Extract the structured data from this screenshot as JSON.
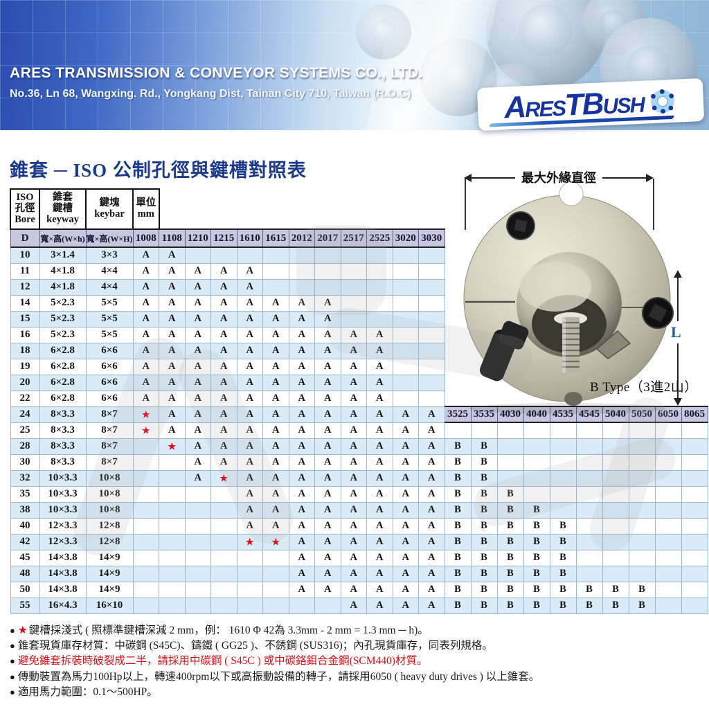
{
  "banner": {
    "company": "ARES TRANSMISSION & CONVEYOR SYSTEMS CO., LTD.",
    "address": "No.36, Ln 68, Wangxing. Rd., Yongkang Dist, Tainan City 710, Taiwan (R.O.C)",
    "logo": "AresTBush"
  },
  "page_title": "錐套 ─ ISO 公制孔徑與鍵槽對照表",
  "photo": {
    "dim_top_label": "最大外緣直徑",
    "dim_length_label": "L",
    "caption": "B Type（3進2山）"
  },
  "table": {
    "corner_headers": [
      {
        "lines": [
          "ISO",
          "孔徑",
          "Bore"
        ]
      },
      {
        "lines": [
          "錐套",
          "鍵槽",
          "keyway"
        ]
      },
      {
        "lines": [
          "鍵塊",
          "keybar"
        ]
      },
      {
        "lines": [
          "單位",
          "mm"
        ]
      }
    ],
    "sub_headers": [
      "D",
      "寬×高(W×h)",
      "寬×高(W×H)"
    ],
    "size_columns": [
      "1008",
      "1108",
      "1210",
      "1215",
      "1610",
      "1615",
      "2012",
      "2017",
      "2517",
      "2525",
      "3020",
      "3030"
    ],
    "ext_columns": [
      "3525",
      "3535",
      "4030",
      "4040",
      "4535",
      "4545",
      "5040",
      "5050",
      "6050",
      "8065"
    ],
    "star_symbol": "★",
    "rows": [
      {
        "bore": "10",
        "keyway": "3×1.4",
        "keybar": "3×3",
        "main": [
          "A",
          "A",
          "",
          "",
          "",
          "",
          "",
          "",
          "",
          "",
          "",
          ""
        ],
        "ext": null
      },
      {
        "bore": "11",
        "keyway": "4×1.8",
        "keybar": "4×4",
        "main": [
          "A",
          "A",
          "A",
          "A",
          "A",
          "",
          "",
          "",
          "",
          "",
          "",
          ""
        ],
        "ext": null
      },
      {
        "bore": "12",
        "keyway": "4×1.8",
        "keybar": "4×4",
        "main": [
          "A",
          "A",
          "A",
          "A",
          "A",
          "",
          "",
          "",
          "",
          "",
          "",
          ""
        ],
        "ext": null
      },
      {
        "bore": "14",
        "keyway": "5×2.3",
        "keybar": "5×5",
        "main": [
          "A",
          "A",
          "A",
          "A",
          "A",
          "A",
          "A",
          "A",
          "",
          "",
          "",
          ""
        ],
        "ext": null
      },
      {
        "bore": "15",
        "keyway": "5×2.3",
        "keybar": "5×5",
        "main": [
          "A",
          "A",
          "A",
          "A",
          "A",
          "A",
          "A",
          "A",
          "",
          "",
          "",
          ""
        ],
        "ext": null
      },
      {
        "bore": "16",
        "keyway": "5×2.3",
        "keybar": "5×5",
        "main": [
          "A",
          "A",
          "A",
          "A",
          "A",
          "A",
          "A",
          "A",
          "A",
          "A",
          "",
          ""
        ],
        "ext": null
      },
      {
        "bore": "18",
        "keyway": "6×2.8",
        "keybar": "6×6",
        "main": [
          "A",
          "A",
          "A",
          "A",
          "A",
          "A",
          "A",
          "A",
          "A",
          "A",
          "",
          ""
        ],
        "ext": null
      },
      {
        "bore": "19",
        "keyway": "6×2.8",
        "keybar": "6×6",
        "main": [
          "A",
          "A",
          "A",
          "A",
          "A",
          "A",
          "A",
          "A",
          "A",
          "A",
          "",
          ""
        ],
        "ext": null
      },
      {
        "bore": "20",
        "keyway": "6×2.8",
        "keybar": "6×6",
        "main": [
          "A",
          "A",
          "A",
          "A",
          "A",
          "A",
          "A",
          "A",
          "A",
          "A",
          "",
          ""
        ],
        "ext": null
      },
      {
        "bore": "22",
        "keyway": "6×2.8",
        "keybar": "6×6",
        "main": [
          "A",
          "A",
          "A",
          "A",
          "A",
          "A",
          "A",
          "A",
          "A",
          "A",
          "",
          ""
        ],
        "ext": null
      },
      {
        "bore": "24",
        "keyway": "8×3.3",
        "keybar": "8×7",
        "main": [
          "★",
          "A",
          "A",
          "A",
          "A",
          "A",
          "A",
          "A",
          "A",
          "A",
          "A",
          "A"
        ],
        "ext": "header"
      },
      {
        "bore": "25",
        "keyway": "8×3.3",
        "keybar": "8×7",
        "main": [
          "★",
          "A",
          "A",
          "A",
          "A",
          "A",
          "A",
          "A",
          "A",
          "A",
          "A",
          "A"
        ],
        "ext": [
          "",
          "",
          "",
          "",
          "",
          "",
          "",
          "",
          "",
          ""
        ]
      },
      {
        "bore": "28",
        "keyway": "8×3.3",
        "keybar": "8×7",
        "main": [
          "",
          "★",
          "A",
          "A",
          "A",
          "A",
          "A",
          "A",
          "A",
          "A",
          "A",
          "A"
        ],
        "ext": [
          "B",
          "B",
          "",
          "",
          "",
          "",
          "",
          "",
          "",
          ""
        ]
      },
      {
        "bore": "30",
        "keyway": "8×3.3",
        "keybar": "8×7",
        "main": [
          "",
          "",
          "A",
          "A",
          "A",
          "A",
          "A",
          "A",
          "A",
          "A",
          "A",
          "A"
        ],
        "ext": [
          "B",
          "B",
          "",
          "",
          "",
          "",
          "",
          "",
          "",
          ""
        ]
      },
      {
        "bore": "32",
        "keyway": "10×3.3",
        "keybar": "10×8",
        "main": [
          "",
          "",
          "A",
          "★",
          "A",
          "A",
          "A",
          "A",
          "A",
          "A",
          "A",
          "A"
        ],
        "ext": [
          "B",
          "B",
          "",
          "",
          "",
          "",
          "",
          "",
          "",
          ""
        ]
      },
      {
        "bore": "35",
        "keyway": "10×3.3",
        "keybar": "10×8",
        "main": [
          "",
          "",
          "",
          "",
          "A",
          "A",
          "A",
          "A",
          "A",
          "A",
          "A",
          "A"
        ],
        "ext": [
          "B",
          "B",
          "B",
          "",
          "",
          "",
          "",
          "",
          "",
          ""
        ]
      },
      {
        "bore": "38",
        "keyway": "10×3.3",
        "keybar": "10×8",
        "main": [
          "",
          "",
          "",
          "",
          "A",
          "A",
          "A",
          "A",
          "A",
          "A",
          "A",
          "A"
        ],
        "ext": [
          "B",
          "B",
          "B",
          "B",
          "",
          "",
          "",
          "",
          "",
          ""
        ]
      },
      {
        "bore": "40",
        "keyway": "12×3.3",
        "keybar": "12×8",
        "main": [
          "",
          "",
          "",
          "",
          "A",
          "A",
          "A",
          "A",
          "A",
          "A",
          "A",
          "A"
        ],
        "ext": [
          "B",
          "B",
          "B",
          "B",
          "B",
          "",
          "",
          "",
          "",
          ""
        ]
      },
      {
        "bore": "42",
        "keyway": "12×3.3",
        "keybar": "12×8",
        "main": [
          "",
          "",
          "",
          "",
          "★",
          "★",
          "A",
          "A",
          "A",
          "A",
          "A",
          "A"
        ],
        "ext": [
          "B",
          "B",
          "B",
          "B",
          "B",
          "",
          "",
          "",
          "",
          ""
        ]
      },
      {
        "bore": "45",
        "keyway": "14×3.8",
        "keybar": "14×9",
        "main": [
          "",
          "",
          "",
          "",
          "",
          "",
          "A",
          "A",
          "A",
          "A",
          "A",
          "A"
        ],
        "ext": [
          "B",
          "B",
          "B",
          "B",
          "B",
          "",
          "",
          "",
          "",
          ""
        ]
      },
      {
        "bore": "48",
        "keyway": "14×3.8",
        "keybar": "14×9",
        "main": [
          "",
          "",
          "",
          "",
          "",
          "",
          "A",
          "A",
          "A",
          "A",
          "A",
          "A"
        ],
        "ext": [
          "B",
          "B",
          "B",
          "B",
          "B",
          "",
          "",
          "",
          "",
          ""
        ]
      },
      {
        "bore": "50",
        "keyway": "14×3.8",
        "keybar": "14×9",
        "main": [
          "",
          "",
          "",
          "",
          "",
          "",
          "A",
          "A",
          "A",
          "A",
          "A",
          "A"
        ],
        "ext": [
          "B",
          "B",
          "B",
          "B",
          "B",
          "B",
          "B",
          "B",
          "",
          ""
        ]
      },
      {
        "bore": "55",
        "keyway": "16×4.3",
        "keybar": "16×10",
        "main": [
          "",
          "",
          "",
          "",
          "",
          "",
          "",
          "",
          "A",
          "A",
          "A",
          "A"
        ],
        "ext": [
          "B",
          "B",
          "B",
          "B",
          "B",
          "B",
          "B",
          "B",
          "",
          ""
        ]
      }
    ]
  },
  "notes": [
    {
      "bullet": "●",
      "star": true,
      "red": false,
      "text": "鍵槽採淺式 ( 照標準鍵槽深減 2 mm，例： 1610 Φ 42為 3.3mm - 2 mm = 1.3 mm ─ h)。"
    },
    {
      "bullet": "●",
      "star": false,
      "red": false,
      "text": "錐套現貨庫存材質：中碳鋼 (S45C)、鑄鐵 ( GG25 )、不銹鋼 (SUS316)；內孔現貨庫存，同表列規格。"
    },
    {
      "bullet": "●",
      "star": false,
      "red": true,
      "text": "避免錐套拆裝時破裂成二半，請採用中碳鋼 ( S45C ) 或中碳鉻鉬合金鋼(SCM440)材質。"
    },
    {
      "bullet": "●",
      "star": false,
      "red": false,
      "text": "傳動裝置為馬力100Hp以上，轉速400rpm以下或高振動設備的轉子，請採用6050 ( heavy duty drives ) 以上錐套。"
    },
    {
      "bullet": "●",
      "star": false,
      "red": false,
      "text": "適用馬力範圍：0.1～500HP。"
    }
  ],
  "colors": {
    "accent_navy": "#1a3b8c",
    "header_purple": "#c8c6e0",
    "row_blue": "#d9ebf7",
    "star_red": "#e60014",
    "note_red": "#cf1016",
    "dim_L_blue": "#1e5ca8"
  }
}
